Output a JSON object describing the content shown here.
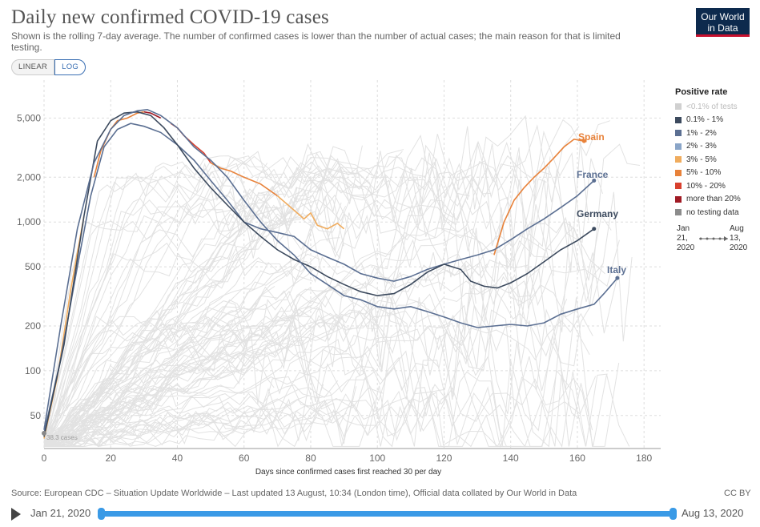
{
  "header": {
    "title": "Daily new confirmed COVID-19 cases",
    "subtitle": "Shown is the rolling 7-day average. The number of confirmed cases is lower than the number of actual cases; the main reason for that is limited testing.",
    "logo_line1": "Our World",
    "logo_line2": "in Data"
  },
  "controls": {
    "linear_label": "LINEAR",
    "log_label": "LOG",
    "active_scale": "LOG"
  },
  "legend": {
    "title": "Positive rate",
    "items": [
      {
        "label": "<0.1% of tests",
        "color": "#d0d0d0",
        "muted": true
      },
      {
        "label": "0.1% - 1%",
        "color": "#3c4a5e"
      },
      {
        "label": "1% - 2%",
        "color": "#5b6f92"
      },
      {
        "label": "2% - 3%",
        "color": "#8aa5c8"
      },
      {
        "label": "3% - 5%",
        "color": "#f0ac5e"
      },
      {
        "label": "5% - 10%",
        "color": "#e8823a"
      },
      {
        "label": "10% - 20%",
        "color": "#d8402e"
      },
      {
        "label": "more than 20%",
        "color": "#a01a24"
      },
      {
        "label": "no testing data",
        "color": "#8c8c8c"
      }
    ],
    "timeline_start": "Jan\n21,\n2020",
    "timeline_end": "Aug\n13,\n2020"
  },
  "chart_data": {
    "type": "line",
    "xlabel": "Days since confirmed cases first reached 30 per day",
    "ylabel": "",
    "scale": "log",
    "xlim": [
      0,
      185
    ],
    "ylim": [
      30,
      9000
    ],
    "x_ticks": [
      0,
      20,
      40,
      60,
      80,
      100,
      120,
      140,
      160,
      180
    ],
    "y_ticks": [
      50,
      100,
      200,
      500,
      1000,
      2000,
      5000
    ],
    "y_tick_labels": [
      "50",
      "100",
      "200",
      "500",
      "1,000",
      "2,000",
      "5,000"
    ],
    "grid": true,
    "annotation": "38.3 cases",
    "series": [
      {
        "name": "Spain",
        "color": "#e8823a",
        "points": [
          [
            0,
            35
          ],
          [
            4,
            90
          ],
          [
            8,
            350
          ],
          [
            12,
            1100
          ],
          [
            15,
            2000
          ],
          [
            17,
            3000
          ],
          [
            20,
            4200
          ],
          [
            22,
            4800
          ],
          [
            25,
            5000
          ],
          [
            28,
            5400
          ],
          [
            30,
            5500
          ],
          [
            32,
            5400
          ],
          [
            35,
            5000
          ],
          [
            38,
            4600
          ],
          [
            40,
            4300
          ],
          [
            42,
            3800
          ],
          [
            45,
            3300
          ],
          [
            48,
            2900
          ],
          [
            50,
            2500
          ],
          [
            53,
            2300
          ],
          [
            56,
            2200
          ],
          [
            60,
            2000
          ],
          [
            65,
            1800
          ],
          [
            70,
            1500
          ],
          [
            75,
            1200
          ],
          [
            78,
            1050
          ],
          [
            80,
            1150
          ],
          [
            82,
            950
          ],
          [
            85,
            900
          ],
          [
            88,
            980
          ],
          [
            90,
            900
          ]
        ],
        "segments": [
          {
            "from": 0,
            "to": 14,
            "color": "#f0ac5e"
          },
          {
            "from": 14,
            "to": 30,
            "color": "#e8823a"
          },
          {
            "from": 30,
            "to": 36,
            "color": "#a01a24"
          },
          {
            "from": 36,
            "to": 50,
            "color": "#d8402e"
          },
          {
            "from": 50,
            "to": 70,
            "color": "#e8823a"
          },
          {
            "from": 70,
            "to": 90,
            "color": "#f0ac5e"
          }
        ],
        "tail": [
          [
            135,
            600
          ],
          [
            138,
            1000
          ],
          [
            141,
            1400
          ],
          [
            144,
            1700
          ],
          [
            147,
            2000
          ],
          [
            150,
            2300
          ],
          [
            153,
            2700
          ],
          [
            156,
            3200
          ],
          [
            159,
            3600
          ],
          [
            162,
            3500
          ]
        ]
      },
      {
        "name": "France",
        "color": "#5b6f92",
        "points": [
          [
            0,
            38
          ],
          [
            5,
            120
          ],
          [
            10,
            500
          ],
          [
            14,
            1500
          ],
          [
            18,
            3200
          ],
          [
            22,
            4200
          ],
          [
            26,
            4600
          ],
          [
            30,
            4400
          ],
          [
            35,
            4000
          ],
          [
            40,
            3300
          ],
          [
            45,
            2600
          ],
          [
            50,
            1900
          ],
          [
            55,
            1400
          ],
          [
            60,
            1000
          ],
          [
            65,
            900
          ],
          [
            70,
            850
          ],
          [
            75,
            800
          ],
          [
            80,
            650
          ],
          [
            85,
            580
          ],
          [
            90,
            520
          ],
          [
            95,
            450
          ],
          [
            100,
            420
          ],
          [
            105,
            400
          ],
          [
            110,
            430
          ],
          [
            115,
            480
          ],
          [
            120,
            520
          ],
          [
            125,
            560
          ],
          [
            130,
            600
          ],
          [
            135,
            650
          ],
          [
            140,
            760
          ],
          [
            145,
            900
          ],
          [
            150,
            1050
          ],
          [
            155,
            1250
          ],
          [
            160,
            1500
          ],
          [
            165,
            1900
          ]
        ]
      },
      {
        "name": "Germany",
        "color": "#3c4a5e",
        "points": [
          [
            0,
            36
          ],
          [
            6,
            150
          ],
          [
            12,
            1100
          ],
          [
            16,
            3500
          ],
          [
            20,
            4800
          ],
          [
            24,
            5400
          ],
          [
            28,
            5500
          ],
          [
            32,
            5200
          ],
          [
            36,
            4300
          ],
          [
            40,
            3300
          ],
          [
            45,
            2300
          ],
          [
            50,
            1700
          ],
          [
            55,
            1300
          ],
          [
            60,
            1000
          ],
          [
            65,
            800
          ],
          [
            70,
            650
          ],
          [
            75,
            560
          ],
          [
            80,
            500
          ],
          [
            85,
            430
          ],
          [
            90,
            380
          ],
          [
            95,
            340
          ],
          [
            100,
            320
          ],
          [
            105,
            330
          ],
          [
            110,
            380
          ],
          [
            115,
            460
          ],
          [
            120,
            520
          ],
          [
            125,
            480
          ],
          [
            128,
            400
          ],
          [
            132,
            370
          ],
          [
            136,
            360
          ],
          [
            140,
            390
          ],
          [
            145,
            450
          ],
          [
            150,
            540
          ],
          [
            155,
            650
          ],
          [
            160,
            750
          ],
          [
            165,
            900
          ]
        ]
      },
      {
        "name": "Italy",
        "color": "#5b6f92",
        "points": [
          [
            0,
            40
          ],
          [
            5,
            200
          ],
          [
            10,
            900
          ],
          [
            15,
            2500
          ],
          [
            20,
            4200
          ],
          [
            24,
            5200
          ],
          [
            28,
            5600
          ],
          [
            31,
            5700
          ],
          [
            35,
            5200
          ],
          [
            40,
            4300
          ],
          [
            45,
            3200
          ],
          [
            50,
            2600
          ],
          [
            55,
            2000
          ],
          [
            60,
            1400
          ],
          [
            65,
            1000
          ],
          [
            70,
            750
          ],
          [
            75,
            600
          ],
          [
            80,
            450
          ],
          [
            85,
            380
          ],
          [
            90,
            320
          ],
          [
            95,
            300
          ],
          [
            100,
            270
          ],
          [
            105,
            260
          ],
          [
            110,
            270
          ],
          [
            115,
            250
          ],
          [
            120,
            230
          ],
          [
            125,
            210
          ],
          [
            130,
            195
          ],
          [
            135,
            200
          ],
          [
            140,
            205
          ],
          [
            145,
            200
          ],
          [
            150,
            210
          ],
          [
            155,
            240
          ],
          [
            160,
            260
          ],
          [
            165,
            280
          ],
          [
            168,
            330
          ],
          [
            172,
            420
          ]
        ]
      }
    ]
  },
  "footer": {
    "source": "Source: European CDC – Situation Update Worldwide – Last updated 13 August, 10:34 (London time), Official data collated by Our World in Data",
    "license": "CC BY",
    "date_start": "Jan 21, 2020",
    "date_end": "Aug 13, 2020"
  }
}
